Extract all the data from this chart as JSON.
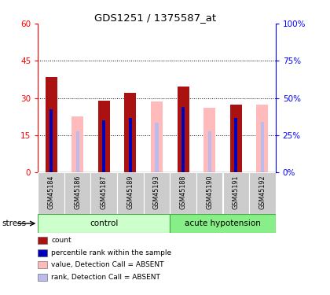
{
  "title": "GDS1251 / 1375587_at",
  "samples": [
    "GSM45184",
    "GSM45186",
    "GSM45187",
    "GSM45189",
    "GSM45193",
    "GSM45188",
    "GSM45190",
    "GSM45191",
    "GSM45192"
  ],
  "red_bars": [
    38.5,
    0.0,
    29.0,
    32.0,
    0.0,
    34.5,
    0.0,
    27.5,
    0.0
  ],
  "blue_bars": [
    25.5,
    0.0,
    21.0,
    22.0,
    0.0,
    26.5,
    0.0,
    22.0,
    0.0
  ],
  "pink_bars": [
    0.0,
    22.5,
    0.0,
    0.0,
    28.5,
    0.0,
    26.0,
    0.0,
    27.5
  ],
  "lavender_bars": [
    0.0,
    16.5,
    0.0,
    0.0,
    20.0,
    0.0,
    16.5,
    0.0,
    20.5
  ],
  "ylim_left": [
    0,
    60
  ],
  "ylim_right": [
    0,
    100
  ],
  "yticks_left": [
    0,
    15,
    30,
    45,
    60
  ],
  "yticks_right": [
    0,
    25,
    50,
    75,
    100
  ],
  "ytick_labels_left": [
    "0",
    "15",
    "30",
    "45",
    "60"
  ],
  "ytick_labels_right": [
    "0%",
    "25%",
    "50%",
    "75%",
    "100%"
  ],
  "color_red": "#AA1111",
  "color_blue": "#0000BB",
  "color_pink": "#FFBBBB",
  "color_lavender": "#BBBBEE",
  "group_configs": [
    {
      "label": "control",
      "start": 0,
      "end": 4,
      "color_face": "#CCFFCC",
      "color_edge": "#44AA44"
    },
    {
      "label": "acute hypotension",
      "start": 5,
      "end": 8,
      "color_face": "#88EE88",
      "color_edge": "#44AA44"
    }
  ],
  "legend_items": [
    {
      "color": "#AA1111",
      "label": "count"
    },
    {
      "color": "#0000BB",
      "label": "percentile rank within the sample"
    },
    {
      "color": "#FFBBBB",
      "label": "value, Detection Call = ABSENT"
    },
    {
      "color": "#BBBBEE",
      "label": "rank, Detection Call = ABSENT"
    }
  ],
  "red_bar_width": 0.45,
  "blue_bar_width": 0.12,
  "pink_bar_width": 0.45,
  "lavender_bar_width": 0.12
}
